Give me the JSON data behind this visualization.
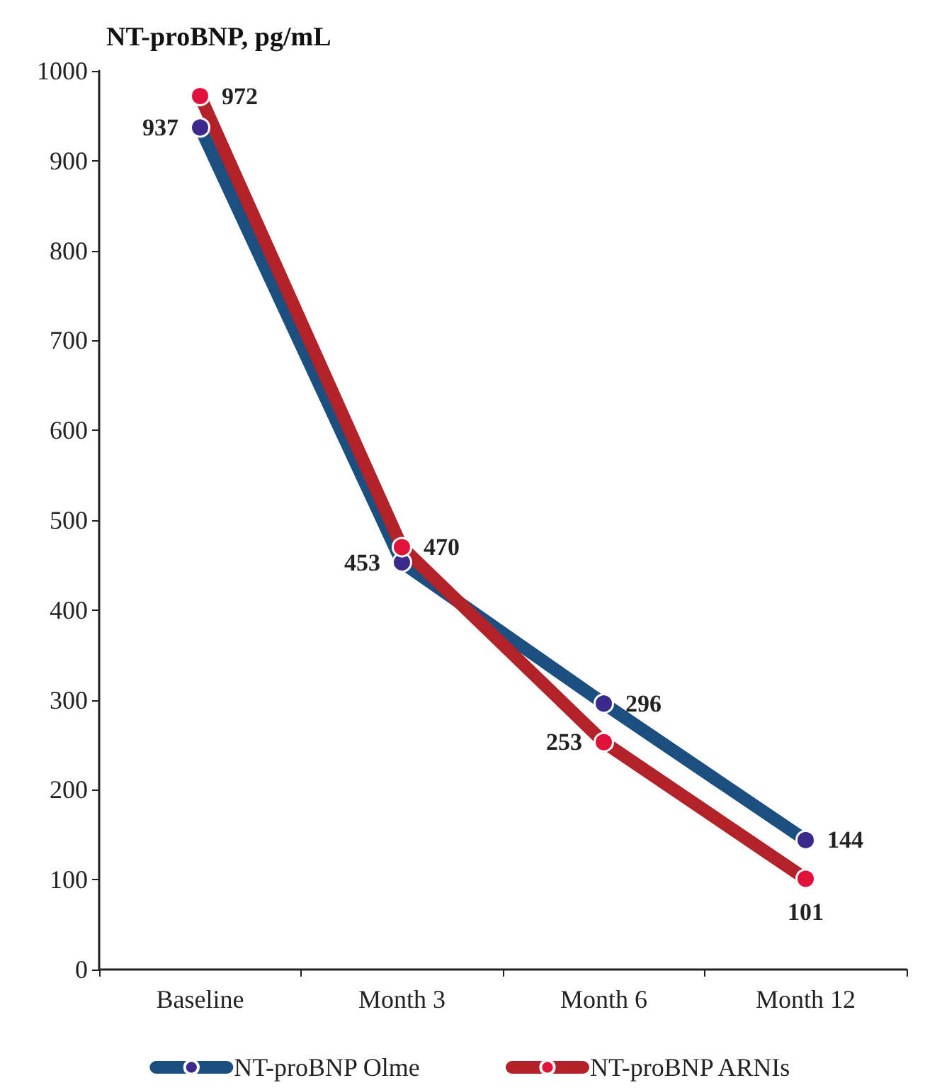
{
  "chart_data": {
    "type": "line",
    "ylabel": "NT-proBNP, pg/mL",
    "categories": [
      "Baseline",
      "Month 3",
      "Month 6",
      "Month 12"
    ],
    "series": [
      {
        "name": "NT-proBNP Olme",
        "color": "#1b4f80",
        "values": [
          937,
          453,
          296,
          144
        ]
      },
      {
        "name": "NT-proBNP ARNIs",
        "color": "#b22228",
        "values": [
          972,
          470,
          253,
          101
        ]
      }
    ],
    "ylim": [
      0,
      1000
    ],
    "yticks": [
      0,
      100,
      200,
      300,
      400,
      500,
      600,
      700,
      800,
      900,
      1000
    ],
    "data_labels": true,
    "grid": false,
    "legend": "bottom",
    "marker": "circle",
    "line_style": "solid"
  }
}
